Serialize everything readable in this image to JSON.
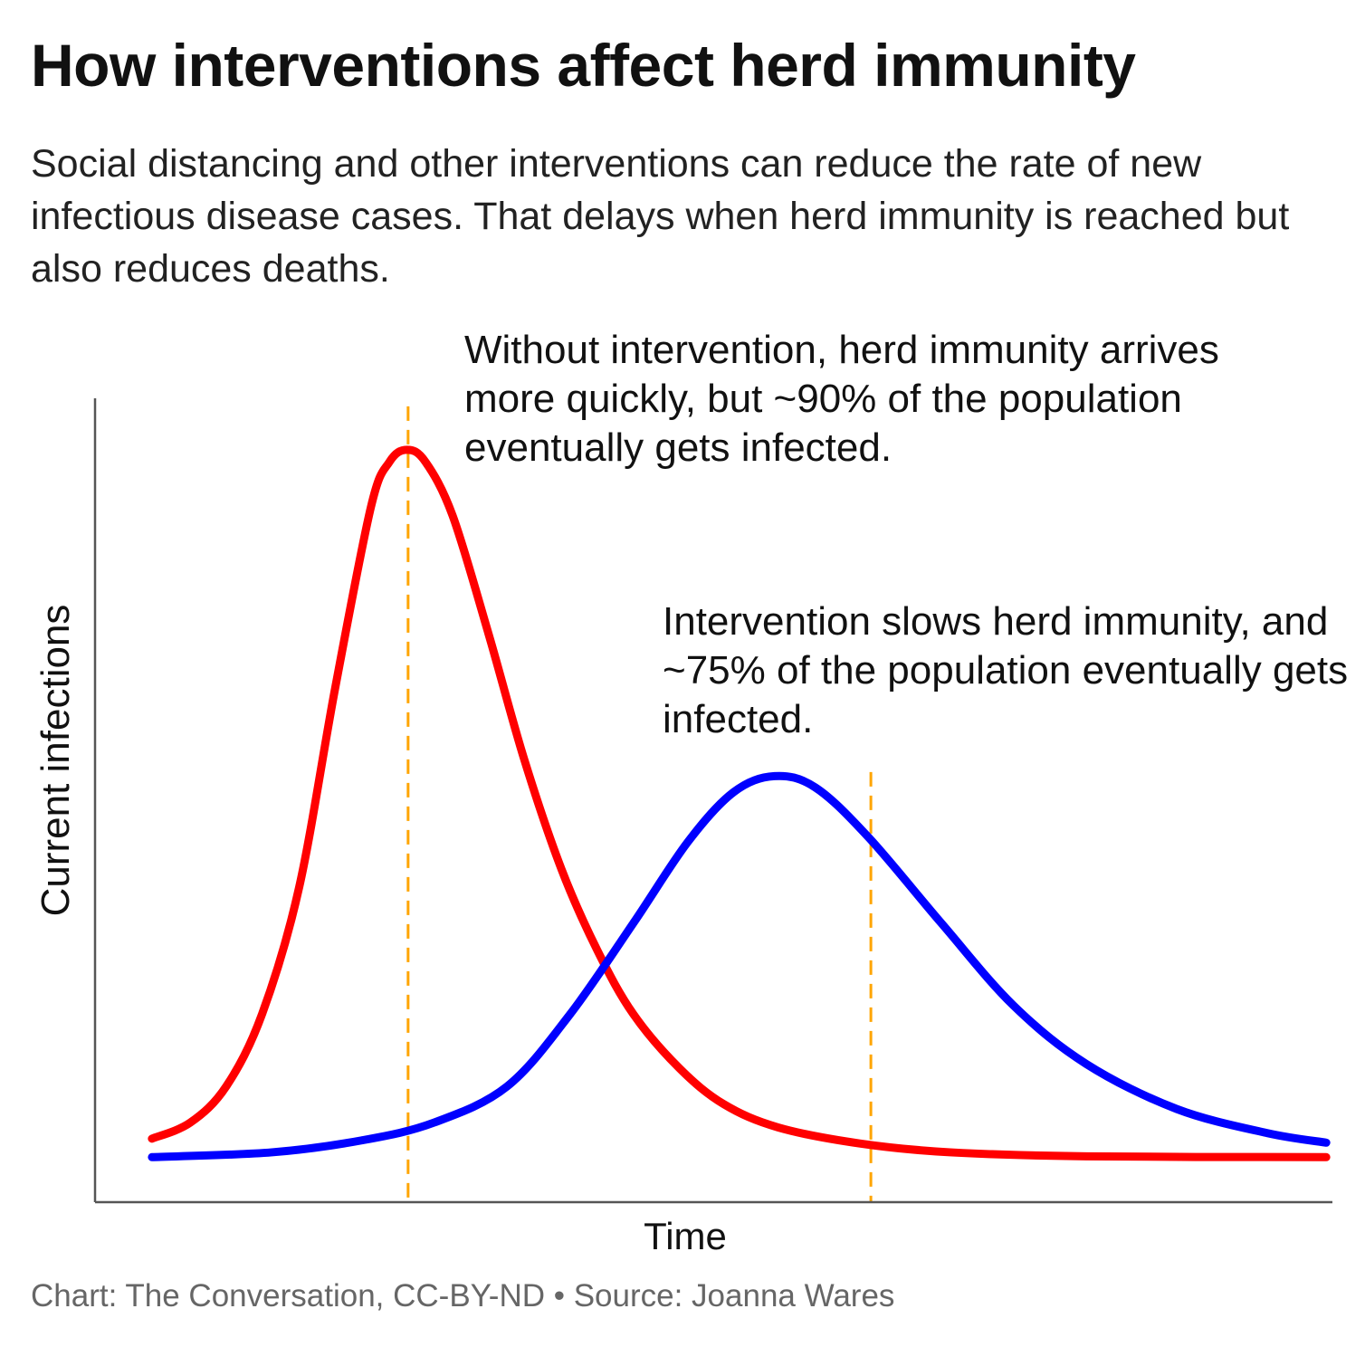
{
  "header": {
    "title": "How interventions affect herd immunity",
    "subtitle": "Social distancing and other interventions can reduce the rate of new infectious disease cases. That delays when herd immunity is reached but also reduces deaths."
  },
  "footer": {
    "credit": "Chart: The Conversation, CC-BY-ND • Source: Joanna Wares"
  },
  "chart_data": {
    "type": "line",
    "title": "How interventions affect herd immunity",
    "xlabel": "Time",
    "ylabel": "Current infections",
    "xlim": [
      0,
      100
    ],
    "ylim": [
      0,
      100
    ],
    "grid": false,
    "ticks": false,
    "colors": {
      "without_intervention": "#ff0000",
      "with_intervention": "#0000ff",
      "marker": "#ffa500",
      "axis": "#555555"
    },
    "series": [
      {
        "key": "without_intervention",
        "color": "#ff0000",
        "x": [
          4.6,
          7.7,
          10.6,
          13.5,
          16.5,
          19.4,
          22.3,
          23.8,
          25.2,
          26.7,
          28.9,
          31.8,
          34.7,
          37.7,
          40.6,
          43.5,
          47.2,
          50.8,
          55.2,
          61.8,
          69.1,
          80.1,
          99.5
        ],
        "y": [
          7.9,
          9.9,
          14.4,
          23.4,
          39.2,
          63.9,
          86.5,
          92.1,
          93.6,
          92.1,
          85.4,
          70.7,
          55.0,
          41.4,
          31.3,
          23.4,
          16.7,
          12.2,
          9.3,
          7.3,
          6.2,
          5.7,
          5.6
        ]
      },
      {
        "key": "with_intervention",
        "color": "#0000ff",
        "x": [
          4.6,
          14.3,
          21.6,
          27.4,
          33.3,
          38.4,
          43.5,
          47.9,
          51.6,
          54.9,
          58.2,
          62.5,
          68.4,
          74.2,
          80.1,
          87.4,
          94.7,
          99.5
        ],
        "y": [
          5.6,
          6.2,
          7.7,
          9.9,
          14.4,
          23.4,
          34.7,
          44.8,
          51.0,
          53.0,
          51.6,
          45.4,
          34.7,
          24.5,
          17.2,
          11.6,
          8.6,
          7.4
        ]
      }
    ],
    "markers": [
      {
        "key": "herd_immunity_without",
        "x": 25.3,
        "y_top": 99,
        "color": "#ffa500",
        "style": "dashed"
      },
      {
        "key": "herd_immunity_with",
        "x": 62.7,
        "y_top": 53.5,
        "color": "#ffa500",
        "style": "dashed"
      }
    ],
    "annotations": [
      "Without intervention, herd immunity arrives more quickly, but ~90% of the population eventually gets infected.",
      "Intervention slows herd immunity, and ~75% of the population eventually gets infected."
    ]
  }
}
